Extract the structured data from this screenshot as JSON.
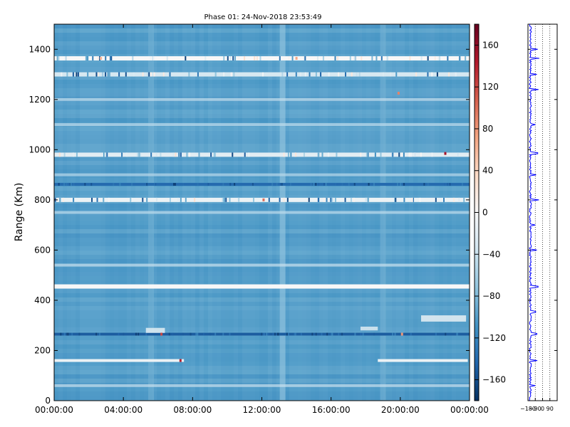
{
  "chart_data": [
    {
      "type": "heatmap",
      "title": "Phase 01: 24-Nov-2018 23:53:49",
      "ylabel": "Range (Km)",
      "xlabel": "",
      "x_ticks": [
        "00:00:00",
        "04:00:00",
        "08:00:00",
        "12:00:00",
        "16:00:00",
        "20:00:00",
        "00:00:00"
      ],
      "x_range_hours": [
        0,
        24
      ],
      "y_ticks": [
        0,
        200,
        400,
        600,
        800,
        1000,
        1200,
        1400
      ],
      "ylim": [
        0,
        1500
      ],
      "colorbar": {
        "ticks": [
          160,
          120,
          80,
          40,
          0,
          -40,
          -80,
          -120,
          -160
        ],
        "range": [
          -180,
          180
        ],
        "colormap": "RdBu_r"
      },
      "dominant_value": -100,
      "vertical_bands": [
        {
          "hour": 13.2,
          "value": -70
        },
        {
          "hour": 5.6,
          "value": -85
        },
        {
          "hour": 19.0,
          "value": -85
        }
      ],
      "horizontal_bands": [
        {
          "range_km": 1364,
          "value": 0,
          "type": "white-noisy"
        },
        {
          "range_km": 1300,
          "value": -30,
          "type": "white-noisy"
        },
        {
          "range_km": 1200,
          "value": -40,
          "type": "light"
        },
        {
          "range_km": 1100,
          "value": -45,
          "type": "light"
        },
        {
          "range_km": 980,
          "value": -20,
          "type": "white-noisy"
        },
        {
          "range_km": 900,
          "value": -50,
          "type": "light"
        },
        {
          "range_km": 862,
          "value": -140,
          "type": "dark-noisy"
        },
        {
          "range_km": 800,
          "value": -10,
          "type": "white-noisy"
        },
        {
          "range_km": 750,
          "value": -45,
          "type": "light"
        },
        {
          "range_km": 540,
          "value": -40,
          "type": "light"
        },
        {
          "range_km": 455,
          "value": 0,
          "type": "white"
        },
        {
          "range_km": 265,
          "value": -150,
          "type": "dark-noisy"
        },
        {
          "range_km": 160,
          "value": -10,
          "type": "white-partial"
        },
        {
          "range_km": 60,
          "value": -40,
          "type": "light"
        }
      ],
      "patches": [
        {
          "hours": [
            21.2,
            23.8
          ],
          "range_km": [
            315,
            340
          ],
          "value": -15
        },
        {
          "hours": [
            5.3,
            6.4
          ],
          "range_km": [
            270,
            290
          ],
          "value": -20
        },
        {
          "hours": [
            17.7,
            18.7
          ],
          "range_km": [
            280,
            295
          ],
          "value": -25
        }
      ],
      "hot_pixels": [
        {
          "hour": 2.7,
          "range_km": 1364,
          "value": 60
        },
        {
          "hour": 6.2,
          "range_km": 265,
          "value": 120
        },
        {
          "hour": 7.3,
          "range_km": 160,
          "value": 140
        },
        {
          "hour": 12.1,
          "range_km": 800,
          "value": 100
        },
        {
          "hour": 20.1,
          "range_km": 265,
          "value": 80
        },
        {
          "hour": 22.6,
          "range_km": 985,
          "value": 150
        },
        {
          "hour": 19.9,
          "range_km": 1225,
          "value": 90
        },
        {
          "hour": 14.0,
          "range_km": 1364,
          "value": 70
        }
      ]
    },
    {
      "type": "line",
      "title": "",
      "xlabel": "",
      "ylabel": "",
      "x_ticks": [
        "−180",
        "−90",
        "0",
        "90"
      ],
      "xlim": [
        -180,
        180
      ],
      "ylim": [
        0,
        1500
      ],
      "grid": true,
      "series_color": "#0000ff",
      "baseline_value": -150,
      "jitter": 25,
      "spikes": [
        {
          "range_km": 1400,
          "value": -60
        },
        {
          "range_km": 1364,
          "value": -40
        },
        {
          "range_km": 1300,
          "value": -70
        },
        {
          "range_km": 1240,
          "value": -50
        },
        {
          "range_km": 1100,
          "value": -90
        },
        {
          "range_km": 985,
          "value": -60
        },
        {
          "range_km": 900,
          "value": -80
        },
        {
          "range_km": 800,
          "value": -45
        },
        {
          "range_km": 700,
          "value": -90
        },
        {
          "range_km": 600,
          "value": -70
        },
        {
          "range_km": 455,
          "value": -55
        },
        {
          "range_km": 355,
          "value": -85
        },
        {
          "range_km": 265,
          "value": -70
        },
        {
          "range_km": 160,
          "value": -65
        },
        {
          "range_km": 60,
          "value": -90
        }
      ]
    }
  ]
}
